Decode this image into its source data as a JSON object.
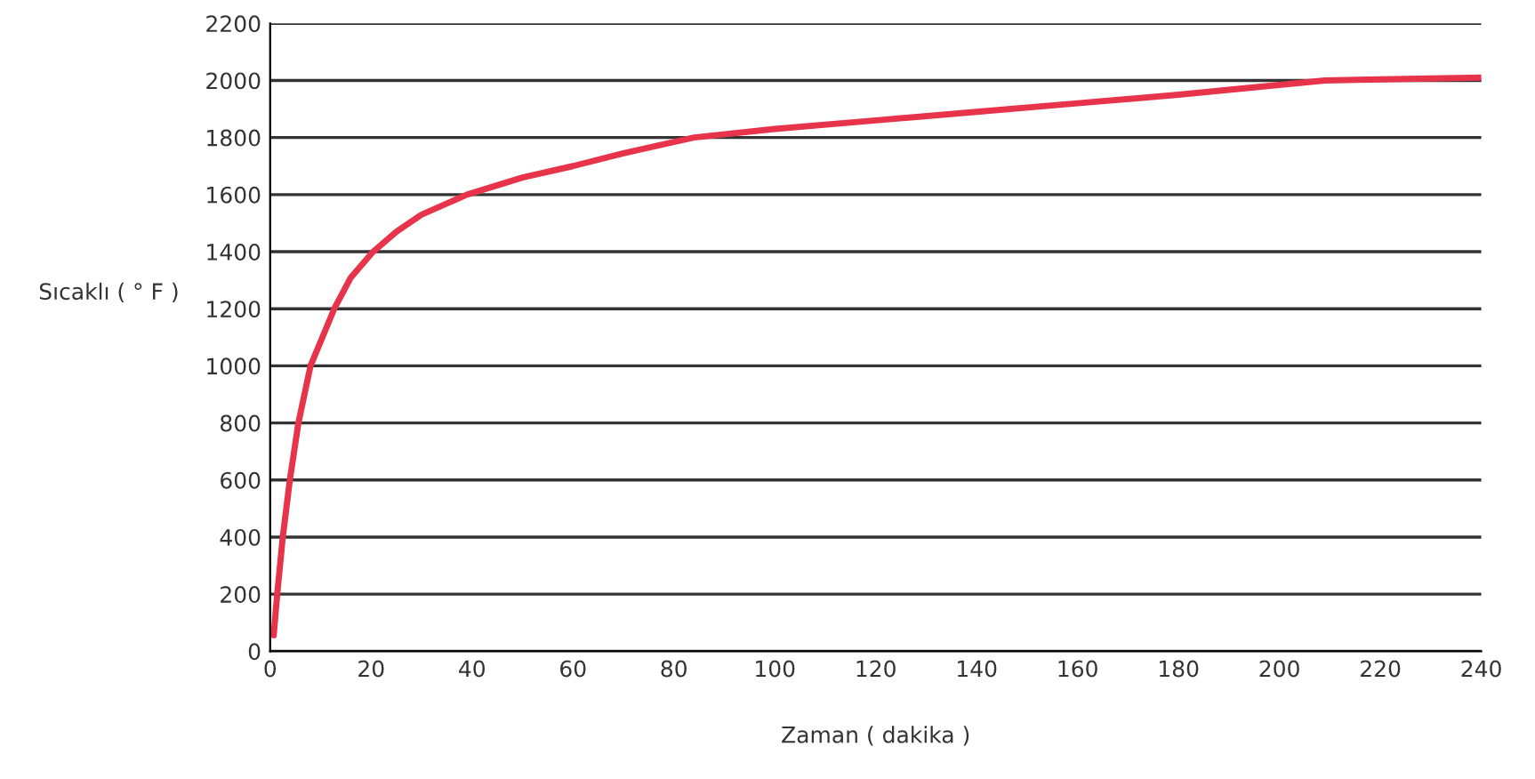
{
  "chart_data": {
    "type": "line",
    "xlabel": "Zaman ( dakika )",
    "ylabel": "Sıcaklı ( ° F )",
    "x": [
      0.7,
      1.4,
      2.5,
      3.9,
      5.6,
      8,
      12.7,
      16,
      20.4,
      25,
      30,
      39,
      50,
      60,
      70,
      84,
      100,
      120,
      140,
      160,
      180,
      209,
      240
    ],
    "series": [
      {
        "color": "#e8344a",
        "values": [
          56,
          200,
          400,
          600,
          800,
          1000,
          1200,
          1310,
          1400,
          1470,
          1530,
          1600,
          1660,
          1700,
          1745,
          1800,
          1830,
          1860,
          1890,
          1920,
          1950,
          2000,
          2010
        ]
      }
    ],
    "xlim": [
      0,
      240
    ],
    "xticks": [
      0,
      20,
      40,
      60,
      80,
      100,
      120,
      140,
      160,
      180,
      200,
      220,
      240
    ],
    "ylim": [
      0,
      2200
    ],
    "yticks": [
      0,
      200,
      400,
      600,
      800,
      1000,
      1200,
      1400,
      1600,
      1800,
      2000,
      2200
    ],
    "grid": "y",
    "line_style": "solid",
    "marker": "none"
  }
}
